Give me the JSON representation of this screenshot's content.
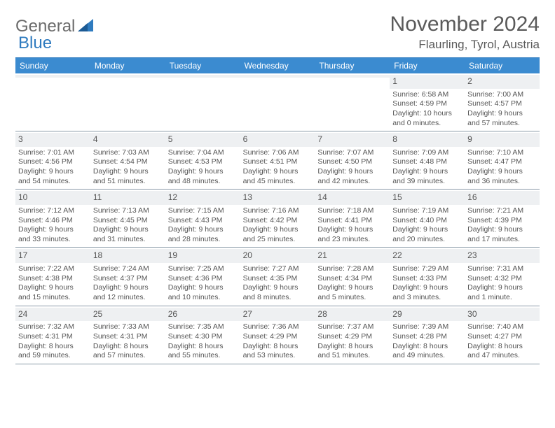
{
  "logo": {
    "textA": "General",
    "textB": "Blue"
  },
  "title": "November 2024",
  "location": "Flaurling, Tyrol, Austria",
  "dow": [
    "Sunday",
    "Monday",
    "Tuesday",
    "Wednesday",
    "Thursday",
    "Friday",
    "Saturday"
  ],
  "colors": {
    "header_bar": "#3b8bd0",
    "accent_line": "#2f7bbf",
    "daynum_bg": "#eef0f2",
    "cell_border": "#8a9aa8",
    "text": "#555555",
    "title_text": "#5a5a5a"
  },
  "weeks": [
    [
      null,
      null,
      null,
      null,
      null,
      {
        "n": "1",
        "sr": "Sunrise: 6:58 AM",
        "ss": "Sunset: 4:59 PM",
        "d1": "Daylight: 10 hours",
        "d2": "and 0 minutes."
      },
      {
        "n": "2",
        "sr": "Sunrise: 7:00 AM",
        "ss": "Sunset: 4:57 PM",
        "d1": "Daylight: 9 hours",
        "d2": "and 57 minutes."
      }
    ],
    [
      {
        "n": "3",
        "sr": "Sunrise: 7:01 AM",
        "ss": "Sunset: 4:56 PM",
        "d1": "Daylight: 9 hours",
        "d2": "and 54 minutes."
      },
      {
        "n": "4",
        "sr": "Sunrise: 7:03 AM",
        "ss": "Sunset: 4:54 PM",
        "d1": "Daylight: 9 hours",
        "d2": "and 51 minutes."
      },
      {
        "n": "5",
        "sr": "Sunrise: 7:04 AM",
        "ss": "Sunset: 4:53 PM",
        "d1": "Daylight: 9 hours",
        "d2": "and 48 minutes."
      },
      {
        "n": "6",
        "sr": "Sunrise: 7:06 AM",
        "ss": "Sunset: 4:51 PM",
        "d1": "Daylight: 9 hours",
        "d2": "and 45 minutes."
      },
      {
        "n": "7",
        "sr": "Sunrise: 7:07 AM",
        "ss": "Sunset: 4:50 PM",
        "d1": "Daylight: 9 hours",
        "d2": "and 42 minutes."
      },
      {
        "n": "8",
        "sr": "Sunrise: 7:09 AM",
        "ss": "Sunset: 4:48 PM",
        "d1": "Daylight: 9 hours",
        "d2": "and 39 minutes."
      },
      {
        "n": "9",
        "sr": "Sunrise: 7:10 AM",
        "ss": "Sunset: 4:47 PM",
        "d1": "Daylight: 9 hours",
        "d2": "and 36 minutes."
      }
    ],
    [
      {
        "n": "10",
        "sr": "Sunrise: 7:12 AM",
        "ss": "Sunset: 4:46 PM",
        "d1": "Daylight: 9 hours",
        "d2": "and 33 minutes."
      },
      {
        "n": "11",
        "sr": "Sunrise: 7:13 AM",
        "ss": "Sunset: 4:45 PM",
        "d1": "Daylight: 9 hours",
        "d2": "and 31 minutes."
      },
      {
        "n": "12",
        "sr": "Sunrise: 7:15 AM",
        "ss": "Sunset: 4:43 PM",
        "d1": "Daylight: 9 hours",
        "d2": "and 28 minutes."
      },
      {
        "n": "13",
        "sr": "Sunrise: 7:16 AM",
        "ss": "Sunset: 4:42 PM",
        "d1": "Daylight: 9 hours",
        "d2": "and 25 minutes."
      },
      {
        "n": "14",
        "sr": "Sunrise: 7:18 AM",
        "ss": "Sunset: 4:41 PM",
        "d1": "Daylight: 9 hours",
        "d2": "and 23 minutes."
      },
      {
        "n": "15",
        "sr": "Sunrise: 7:19 AM",
        "ss": "Sunset: 4:40 PM",
        "d1": "Daylight: 9 hours",
        "d2": "and 20 minutes."
      },
      {
        "n": "16",
        "sr": "Sunrise: 7:21 AM",
        "ss": "Sunset: 4:39 PM",
        "d1": "Daylight: 9 hours",
        "d2": "and 17 minutes."
      }
    ],
    [
      {
        "n": "17",
        "sr": "Sunrise: 7:22 AM",
        "ss": "Sunset: 4:38 PM",
        "d1": "Daylight: 9 hours",
        "d2": "and 15 minutes."
      },
      {
        "n": "18",
        "sr": "Sunrise: 7:24 AM",
        "ss": "Sunset: 4:37 PM",
        "d1": "Daylight: 9 hours",
        "d2": "and 12 minutes."
      },
      {
        "n": "19",
        "sr": "Sunrise: 7:25 AM",
        "ss": "Sunset: 4:36 PM",
        "d1": "Daylight: 9 hours",
        "d2": "and 10 minutes."
      },
      {
        "n": "20",
        "sr": "Sunrise: 7:27 AM",
        "ss": "Sunset: 4:35 PM",
        "d1": "Daylight: 9 hours",
        "d2": "and 8 minutes."
      },
      {
        "n": "21",
        "sr": "Sunrise: 7:28 AM",
        "ss": "Sunset: 4:34 PM",
        "d1": "Daylight: 9 hours",
        "d2": "and 5 minutes."
      },
      {
        "n": "22",
        "sr": "Sunrise: 7:29 AM",
        "ss": "Sunset: 4:33 PM",
        "d1": "Daylight: 9 hours",
        "d2": "and 3 minutes."
      },
      {
        "n": "23",
        "sr": "Sunrise: 7:31 AM",
        "ss": "Sunset: 4:32 PM",
        "d1": "Daylight: 9 hours",
        "d2": "and 1 minute."
      }
    ],
    [
      {
        "n": "24",
        "sr": "Sunrise: 7:32 AM",
        "ss": "Sunset: 4:31 PM",
        "d1": "Daylight: 8 hours",
        "d2": "and 59 minutes."
      },
      {
        "n": "25",
        "sr": "Sunrise: 7:33 AM",
        "ss": "Sunset: 4:31 PM",
        "d1": "Daylight: 8 hours",
        "d2": "and 57 minutes."
      },
      {
        "n": "26",
        "sr": "Sunrise: 7:35 AM",
        "ss": "Sunset: 4:30 PM",
        "d1": "Daylight: 8 hours",
        "d2": "and 55 minutes."
      },
      {
        "n": "27",
        "sr": "Sunrise: 7:36 AM",
        "ss": "Sunset: 4:29 PM",
        "d1": "Daylight: 8 hours",
        "d2": "and 53 minutes."
      },
      {
        "n": "28",
        "sr": "Sunrise: 7:37 AM",
        "ss": "Sunset: 4:29 PM",
        "d1": "Daylight: 8 hours",
        "d2": "and 51 minutes."
      },
      {
        "n": "29",
        "sr": "Sunrise: 7:39 AM",
        "ss": "Sunset: 4:28 PM",
        "d1": "Daylight: 8 hours",
        "d2": "and 49 minutes."
      },
      {
        "n": "30",
        "sr": "Sunrise: 7:40 AM",
        "ss": "Sunset: 4:27 PM",
        "d1": "Daylight: 8 hours",
        "d2": "and 47 minutes."
      }
    ]
  ]
}
